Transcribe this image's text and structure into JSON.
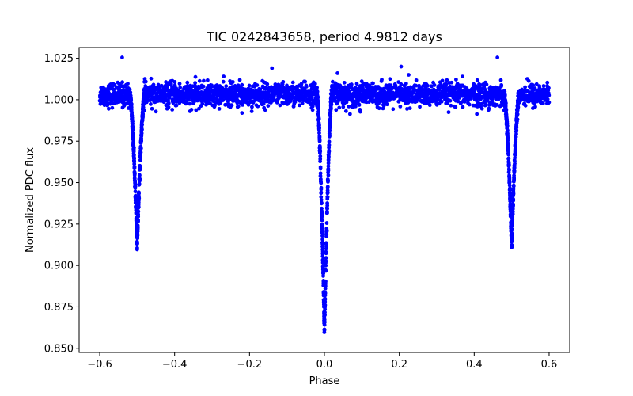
{
  "chart_data": {
    "type": "scatter",
    "title": "TIC 0242843658, period 4.9812 days",
    "xlabel": "Phase",
    "ylabel": "Normalized PDC flux",
    "xlim": [
      -0.655,
      0.655
    ],
    "ylim": [
      0.8475,
      1.0315
    ],
    "xticks": [
      -0.6,
      -0.4,
      -0.2,
      0.0,
      0.2,
      0.4,
      0.6
    ],
    "xtick_labels": [
      "−0.6",
      "−0.4",
      "−0.2",
      "0.0",
      "0.2",
      "0.4",
      "0.6"
    ],
    "yticks": [
      0.85,
      0.875,
      0.9,
      0.925,
      0.95,
      0.975,
      1.0,
      1.025
    ],
    "ytick_labels": [
      "0.850",
      "0.875",
      "0.900",
      "0.925",
      "0.950",
      "0.975",
      "1.000",
      "1.025"
    ],
    "grid": false,
    "series": [
      {
        "name": "PDC flux",
        "color": "#0000ff",
        "model": {
          "phase_range": [
            -0.6,
            0.6
          ],
          "baseline": 1.003,
          "baseline_scatter": 0.0035,
          "primary_eclipse": {
            "center": 0.0,
            "depth": 0.143,
            "half_width": 0.02
          },
          "secondary_eclipses": [
            {
              "center": -0.5,
              "depth": 0.091,
              "half_width": 0.02
            },
            {
              "center": 0.5,
              "depth": 0.091,
              "half_width": 0.02
            }
          ]
        },
        "outliers": [
          {
            "x": -0.54,
            "y": 1.0255
          },
          {
            "x": 0.462,
            "y": 1.0255
          },
          {
            "x": -0.14,
            "y": 1.019
          },
          {
            "x": 0.205,
            "y": 1.02
          },
          {
            "x": 0.035,
            "y": 1.016
          },
          {
            "x": 0.225,
            "y": 1.015
          },
          {
            "x": -0.22,
            "y": 0.992
          },
          {
            "x": -0.355,
            "y": 0.994
          },
          {
            "x": 0.095,
            "y": 0.994
          }
        ]
      }
    ]
  }
}
